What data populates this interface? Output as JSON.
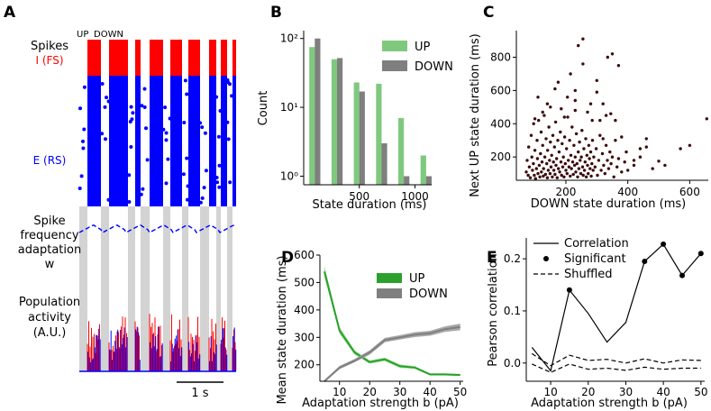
{
  "panel_labels": {
    "a": "A",
    "b": "B",
    "c": "C",
    "d": "D",
    "e": "E"
  },
  "panel_a": {
    "labels": {
      "spikes": "Spikes",
      "fs": "I (FS)",
      "rs": "E (RS)",
      "adapt_line1": "Spike",
      "adapt_line2": "frequency",
      "adapt_line3": "adaptation",
      "adapt_line4": "w",
      "pop_line1": "Population",
      "pop_line2": "activity",
      "pop_line3": "(A.U.)",
      "up": "UP",
      "down": "DOWN",
      "scalebar": "1 s"
    },
    "colors": {
      "fs": "#ff0000",
      "rs": "#0000ff",
      "down_band": "#d3d3d3",
      "adaptation": "#0000ff"
    }
  },
  "chart_data": [
    {
      "panel": "B",
      "type": "bar",
      "xlabel": "State duration (ms)",
      "ylabel": "Count",
      "yscale": "log",
      "ylim": [
        0.75,
        130
      ],
      "xlim": [
        0,
        1150
      ],
      "xticks": [
        500,
        1000
      ],
      "yticks": [
        {
          "v": 1,
          "label": "10⁰"
        },
        {
          "v": 10,
          "label": "10¹"
        },
        {
          "v": 100,
          "label": "10²"
        }
      ],
      "legend_position": "top-right",
      "series": [
        {
          "name": "UP",
          "color": "#7fc97f",
          "x": [
            75,
            275,
            475,
            675,
            875,
            1075
          ],
          "values": [
            75,
            50,
            23,
            22,
            7,
            2
          ]
        },
        {
          "name": "DOWN",
          "color": "#7f7f7f",
          "x": [
            125,
            325,
            525,
            725,
            925,
            1125
          ],
          "values": [
            100,
            52,
            17,
            3,
            1,
            1
          ]
        }
      ]
    },
    {
      "panel": "C",
      "type": "scatter",
      "xlabel": "DOWN state duration (ms)",
      "ylabel": "Next UP state duration (ms)",
      "xlim": [
        40,
        660
      ],
      "ylim": [
        60,
        960
      ],
      "xticks": [
        200,
        400,
        600
      ],
      "yticks": [
        200,
        400,
        600,
        800
      ],
      "color": "#3d0a0a",
      "points": [
        [
          72,
          110
        ],
        [
          75,
          180
        ],
        [
          78,
          90
        ],
        [
          80,
          260
        ],
        [
          82,
          140
        ],
        [
          85,
          75
        ],
        [
          88,
          330
        ],
        [
          90,
          200
        ],
        [
          92,
          120
        ],
        [
          95,
          160
        ],
        [
          96,
          400
        ],
        [
          98,
          90
        ],
        [
          100,
          240
        ],
        [
          102,
          70
        ],
        [
          105,
          130
        ],
        [
          107,
          300
        ],
        [
          108,
          190
        ],
        [
          110,
          100
        ],
        [
          112,
          420
        ],
        [
          114,
          150
        ],
        [
          116,
          80
        ],
        [
          118,
          220
        ],
        [
          120,
          350
        ],
        [
          121,
          110
        ],
        [
          123,
          170
        ],
        [
          125,
          270
        ],
        [
          127,
          85
        ],
        [
          128,
          130
        ],
        [
          130,
          450
        ],
        [
          132,
          200
        ],
        [
          134,
          95
        ],
        [
          136,
          310
        ],
        [
          138,
          160
        ],
        [
          140,
          75
        ],
        [
          141,
          240
        ],
        [
          143,
          120
        ],
        [
          145,
          380
        ],
        [
          147,
          180
        ],
        [
          149,
          100
        ],
        [
          150,
          290
        ],
        [
          152,
          140
        ],
        [
          154,
          210
        ],
        [
          156,
          80
        ],
        [
          158,
          330
        ],
        [
          160,
          170
        ],
        [
          161,
          120
        ],
        [
          163,
          260
        ],
        [
          165,
          95
        ],
        [
          167,
          410
        ],
        [
          168,
          150
        ],
        [
          170,
          190
        ],
        [
          172,
          75
        ],
        [
          174,
          300
        ],
        [
          176,
          130
        ],
        [
          178,
          230
        ],
        [
          180,
          110
        ],
        [
          182,
          350
        ],
        [
          184,
          170
        ],
        [
          186,
          90
        ],
        [
          188,
          280
        ],
        [
          190,
          140
        ],
        [
          192,
          200
        ],
        [
          194,
          80
        ],
        [
          196,
          320
        ],
        [
          198,
          160
        ],
        [
          200,
          120
        ],
        [
          202,
          250
        ],
        [
          204,
          100
        ],
        [
          206,
          440
        ],
        [
          208,
          180
        ],
        [
          210,
          140
        ],
        [
          212,
          300
        ],
        [
          214,
          85
        ],
        [
          216,
          210
        ],
        [
          218,
          130
        ],
        [
          220,
          380
        ],
        [
          222,
          170
        ],
        [
          224,
          95
        ],
        [
          226,
          270
        ],
        [
          228,
          150
        ],
        [
          230,
          200
        ],
        [
          232,
          110
        ],
        [
          234,
          340
        ],
        [
          236,
          160
        ],
        [
          238,
          80
        ],
        [
          240,
          230
        ],
        [
          242,
          130
        ],
        [
          244,
          290
        ],
        [
          246,
          180
        ],
        [
          248,
          100
        ],
        [
          250,
          200
        ],
        [
          252,
          360
        ],
        [
          254,
          140
        ],
        [
          256,
          90
        ],
        [
          258,
          250
        ],
        [
          260,
          120
        ],
        [
          262,
          170
        ],
        [
          264,
          310
        ],
        [
          266,
          80
        ],
        [
          268,
          210
        ],
        [
          270,
          150
        ],
        [
          272,
          100
        ],
        [
          274,
          270
        ],
        [
          276,
          190
        ],
        [
          278,
          130
        ],
        [
          280,
          230
        ],
        [
          282,
          85
        ],
        [
          284,
          160
        ],
        [
          286,
          300
        ],
        [
          288,
          120
        ],
        [
          290,
          200
        ],
        [
          294,
          140
        ],
        [
          298,
          250
        ],
        [
          302,
          90
        ],
        [
          306,
          180
        ],
        [
          310,
          330
        ],
        [
          314,
          120
        ],
        [
          318,
          220
        ],
        [
          322,
          150
        ],
        [
          326,
          100
        ],
        [
          330,
          270
        ],
        [
          334,
          180
        ],
        [
          338,
          130
        ],
        [
          342,
          230
        ],
        [
          346,
          160
        ],
        [
          350,
          200
        ],
        [
          355,
          80
        ],
        [
          360,
          300
        ],
        [
          365,
          140
        ],
        [
          370,
          190
        ],
        [
          380,
          110
        ],
        [
          390,
          170
        ],
        [
          400,
          120
        ],
        [
          420,
          150
        ],
        [
          440,
          200
        ],
        [
          460,
          260
        ],
        [
          480,
          130
        ],
        [
          500,
          175
        ],
        [
          520,
          150
        ],
        [
          570,
          250
        ],
        [
          600,
          270
        ],
        [
          655,
          430
        ],
        [
          110,
          560
        ],
        [
          140,
          520
        ],
        [
          165,
          610
        ],
        [
          185,
          490
        ],
        [
          205,
          560
        ],
        [
          230,
          600
        ],
        [
          215,
          700
        ],
        [
          255,
          760
        ],
        [
          280,
          520
        ],
        [
          300,
          590
        ],
        [
          320,
          520
        ],
        [
          335,
          800
        ],
        [
          350,
          820
        ],
        [
          370,
          750
        ],
        [
          255,
          910
        ],
        [
          240,
          870
        ],
        [
          300,
          660
        ],
        [
          175,
          650
        ],
        [
          360,
          420
        ],
        [
          345,
          460
        ],
        [
          230,
          480
        ],
        [
          195,
          440
        ],
        [
          125,
          470
        ],
        [
          285,
          420
        ],
        [
          100,
          430
        ],
        [
          150,
          500
        ],
        [
          270,
          470
        ],
        [
          230,
          540
        ],
        [
          380,
          320
        ],
        [
          395,
          230
        ],
        [
          420,
          180
        ],
        [
          440,
          250
        ],
        [
          460,
          310
        ],
        [
          310,
          420
        ],
        [
          320,
          310
        ],
        [
          330,
          450
        ]
      ]
    },
    {
      "panel": "D",
      "type": "line",
      "xlabel": "Adaptation strength b (pA)",
      "ylabel": "Mean state duration (ms)",
      "xlim": [
        3.5,
        51
      ],
      "ylim": [
        140,
        600
      ],
      "xticks": [
        10,
        20,
        30,
        40,
        50
      ],
      "yticks": [
        200,
        300,
        400,
        500,
        600
      ],
      "legend_position": "center-right",
      "x": [
        5,
        10,
        15,
        20,
        25,
        30,
        35,
        40,
        45,
        50
      ],
      "series": [
        {
          "name": "UP",
          "color": "#2ca02c",
          "band": "#90e090",
          "values": [
            540,
            325,
            245,
            210,
            220,
            195,
            190,
            165,
            165,
            163
          ],
          "err": [
            20,
            12,
            8,
            6,
            6,
            6,
            5,
            4,
            4,
            4
          ]
        },
        {
          "name": "DOWN",
          "color": "#7f7f7f",
          "band": "#a9a9a9",
          "values": [
            140,
            190,
            215,
            245,
            290,
            300,
            310,
            315,
            330,
            338
          ],
          "err": [
            4,
            6,
            6,
            8,
            8,
            8,
            9,
            9,
            10,
            12
          ]
        }
      ]
    },
    {
      "panel": "E",
      "type": "line",
      "xlabel": "Adaptation strength b (pA)",
      "ylabel": "Pearson correlation",
      "xlim": [
        3.5,
        51
      ],
      "ylim": [
        -0.035,
        0.24
      ],
      "xticks": [
        10,
        20,
        30,
        40,
        50
      ],
      "yticks": [
        0.0,
        0.1,
        0.2
      ],
      "legend_position": "top-left",
      "x": [
        5,
        10,
        15,
        20,
        25,
        30,
        35,
        40,
        45,
        50
      ],
      "series": [
        {
          "name": "Correlation",
          "style": "solid",
          "values": [
            0.03,
            -0.015,
            0.14,
            0.095,
            0.04,
            0.078,
            0.195,
            0.228,
            0.168,
            0.21
          ]
        },
        {
          "name": "Shuffled",
          "style": "dashed",
          "values": [
            0.018,
            -0.005,
            0.015,
            0.005,
            0.007,
            0.0,
            0.008,
            0.0,
            0.006,
            0.005
          ]
        },
        {
          "name": "Shuffled",
          "style": "dashed",
          "values": [
            -0.002,
            -0.018,
            -0.002,
            -0.012,
            -0.01,
            -0.014,
            -0.008,
            -0.012,
            -0.01,
            -0.01
          ]
        }
      ],
      "significant_points": [
        [
          15,
          0.14
        ],
        [
          35,
          0.195
        ],
        [
          40,
          0.228
        ],
        [
          45,
          0.168
        ],
        [
          50,
          0.21
        ]
      ],
      "legend": [
        "Correlation",
        "Significant",
        "Shuffled"
      ]
    }
  ]
}
